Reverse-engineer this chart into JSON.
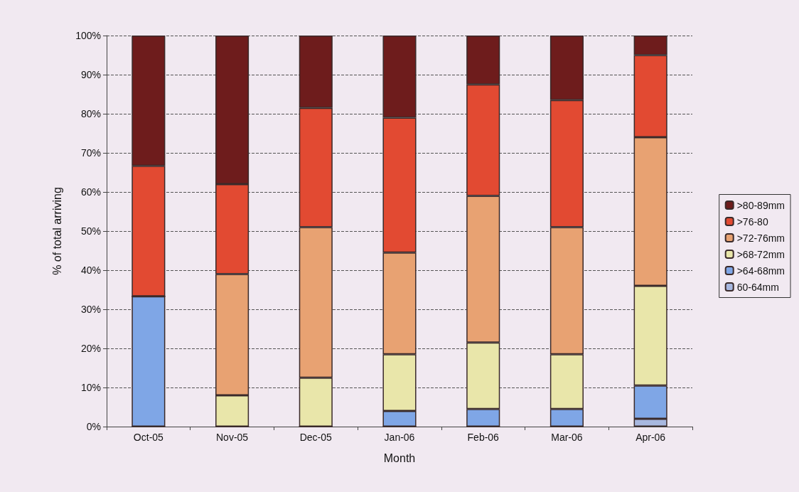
{
  "chart_data": {
    "type": "bar",
    "stacked": true,
    "xlabel": "Month",
    "ylabel": "% of total arriving",
    "categories": [
      "Oct-05",
      "Nov-05",
      "Dec-05",
      "Jan-06",
      "Feb-06",
      "Mar-06",
      "Apr-06"
    ],
    "series": [
      {
        "name": "60-64mm",
        "color": "#a8b8e0",
        "values": [
          0,
          0,
          0,
          0,
          0,
          0,
          2
        ]
      },
      {
        "name": ">64-68mm",
        "color": "#7fa6e6",
        "values": [
          33.3,
          0,
          0,
          4,
          4.5,
          4.5,
          8.5
        ]
      },
      {
        "name": ">68-72mm",
        "color": "#e9e6aa",
        "values": [
          0,
          8,
          12.5,
          14.5,
          17,
          14,
          25.5
        ]
      },
      {
        "name": ">72-76mm",
        "color": "#e8a272",
        "values": [
          0,
          31,
          38.5,
          26,
          37.5,
          32.5,
          38
        ]
      },
      {
        "name": ">76-80",
        "color": "#e24a32",
        "values": [
          33.4,
          23,
          30.5,
          34.5,
          28.5,
          32.5,
          21
        ]
      },
      {
        "name": ">80-89mm",
        "color": "#6e1c1c",
        "values": [
          33.3,
          38,
          18.5,
          21,
          12.5,
          16.5,
          5
        ]
      }
    ],
    "ylim": [
      0,
      100
    ],
    "yticks": [
      {
        "value": 0,
        "label": "0%"
      },
      {
        "value": 10,
        "label": "10%"
      },
      {
        "value": 20,
        "label": "20%"
      },
      {
        "value": 30,
        "label": "30%"
      },
      {
        "value": 40,
        "label": "40%"
      },
      {
        "value": 50,
        "label": "50%"
      },
      {
        "value": 60,
        "label": "60%"
      },
      {
        "value": 70,
        "label": "70%"
      },
      {
        "value": 80,
        "label": "80%"
      },
      {
        "value": 90,
        "label": "90%"
      },
      {
        "value": 100,
        "label": "100%"
      }
    ],
    "grid": "y",
    "legend": "right"
  }
}
